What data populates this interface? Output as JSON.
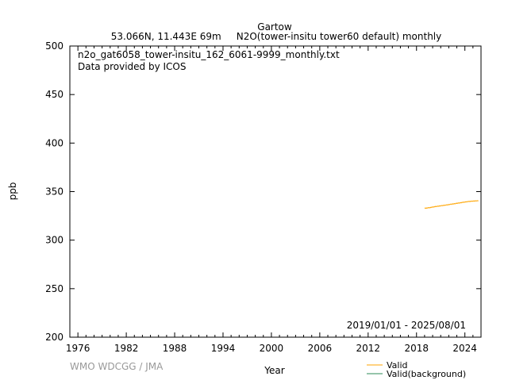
{
  "chart_data": {
    "type": "line",
    "title": "Gartow",
    "subtitle": "53.066N, 11.443E 69m     N2O(tower-insitu tower60 default) monthly",
    "annotations": [
      "n2o_gat6058_tower-insitu_162_6061-9999_monthly.txt",
      "Data provided by ICOS"
    ],
    "date_range": "2019/01/01 - 2025/08/01",
    "credit": "WMO WDCGG / JMA",
    "xlabel": "Year",
    "ylabel": "ppb",
    "xlim": [
      1975,
      2026
    ],
    "ylim": [
      200,
      500
    ],
    "xticks": [
      1976,
      1982,
      1988,
      1994,
      2000,
      2006,
      2012,
      2018,
      2024
    ],
    "yticks": [
      200,
      250,
      300,
      350,
      400,
      450,
      500
    ],
    "grid": false,
    "legend_placement": "bottom-right",
    "series": [
      {
        "name": "Valid",
        "color": "#ffa500",
        "start": "2019-01",
        "frequency": "monthly",
        "values": [
          333.0,
          332.8,
          333.1,
          333.0,
          333.2,
          333.4,
          333.5,
          333.3,
          333.6,
          333.7,
          333.9,
          334.0,
          334.2,
          334.1,
          334.4,
          334.5,
          334.7,
          334.6,
          334.8,
          335.0,
          334.9,
          335.1,
          335.3,
          335.2,
          335.4,
          335.6,
          335.5,
          335.7,
          335.8,
          336.0,
          335.9,
          336.1,
          336.3,
          336.2,
          336.4,
          336.6,
          336.5,
          336.8,
          337.0,
          336.9,
          337.1,
          337.3,
          337.2,
          337.4,
          337.6,
          337.5,
          337.8,
          338.0,
          337.9,
          338.1,
          338.3,
          338.2,
          338.4,
          338.6,
          338.5,
          338.8,
          338.9,
          339.1,
          339.0,
          339.2,
          339.3,
          339.5,
          339.4,
          339.6,
          339.7,
          339.9,
          339.8,
          340.0,
          339.9,
          340.1,
          340.2,
          340.1,
          340.3,
          340.2,
          340.4,
          340.3,
          340.5,
          340.4,
          340.6,
          340.5
        ]
      },
      {
        "name": "Valid(background)",
        "color": "#2e8b57",
        "values": []
      }
    ]
  }
}
